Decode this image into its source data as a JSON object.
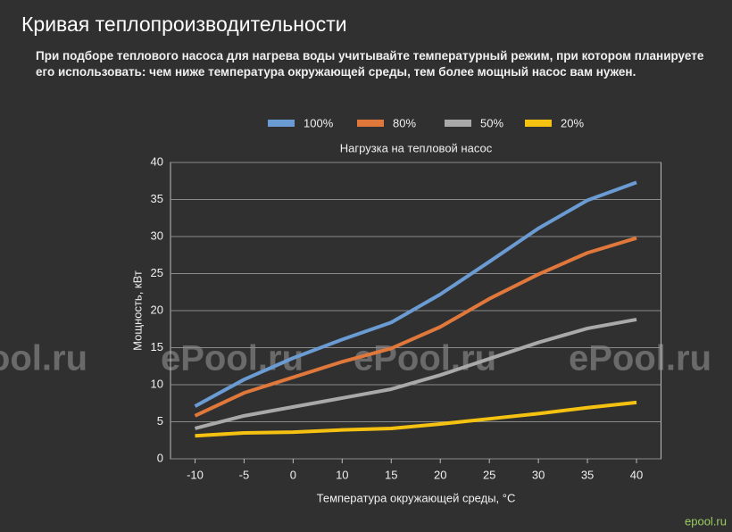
{
  "header": {
    "title": "Кривая теплопроизводительности",
    "description": "При подборе теплового насоса для нагрева воды учитывайте температурный режим, при котором планируете его использовать: чем ниже температура окружающей среды, тем более мощный насос вам нужен."
  },
  "watermark": "ePool.ru",
  "logo": "epool.ru",
  "chart_data": {
    "type": "line",
    "title": "Нагрузка на тепловой насос",
    "x_label": "Температура окружающей среды, °C",
    "y_label": "Мощность, кВт",
    "categories": [
      "-10",
      "-5",
      "0",
      "10",
      "15",
      "20",
      "25",
      "30",
      "35",
      "40"
    ],
    "series": [
      {
        "name": "100%",
        "color": "#6a9bd3",
        "values": [
          7.1,
          10.7,
          13.6,
          16.1,
          18.4,
          22.2,
          26.6,
          31.1,
          34.9,
          37.3
        ]
      },
      {
        "name": "80%",
        "color": "#e0783c",
        "values": [
          5.8,
          8.9,
          11.0,
          13.1,
          14.9,
          17.8,
          21.6,
          24.9,
          27.8,
          29.8
        ]
      },
      {
        "name": "50%",
        "color": "#a9a9a9",
        "values": [
          4.1,
          5.8,
          7.0,
          8.2,
          9.4,
          11.3,
          13.5,
          15.7,
          17.6,
          18.8
        ]
      },
      {
        "name": "20%",
        "color": "#f5c211",
        "values": [
          3.1,
          3.5,
          3.6,
          3.9,
          4.1,
          4.7,
          5.4,
          6.1,
          6.9,
          7.6
        ]
      }
    ],
    "ylim": [
      0,
      40
    ],
    "yticks": [
      0,
      5,
      10,
      15,
      20,
      25,
      30,
      35,
      40
    ],
    "grid": true,
    "legend": "top"
  }
}
